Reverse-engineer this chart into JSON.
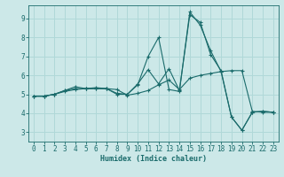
{
  "xlabel": "Humidex (Indice chaleur)",
  "xlim": [
    -0.5,
    23.5
  ],
  "ylim": [
    2.5,
    9.7
  ],
  "xticks": [
    0,
    1,
    2,
    3,
    4,
    5,
    6,
    7,
    8,
    9,
    10,
    11,
    12,
    13,
    14,
    15,
    16,
    17,
    18,
    19,
    20,
    21,
    22,
    23
  ],
  "yticks": [
    3,
    4,
    5,
    6,
    7,
    8,
    9
  ],
  "background_color": "#cce8e8",
  "line_color": "#1a6b6b",
  "grid_color": "#b0d8d8",
  "lines": [
    {
      "x": [
        0,
        1,
        2,
        3,
        4,
        5,
        6,
        7,
        8,
        9,
        10,
        11,
        12,
        13,
        14,
        15,
        16,
        17,
        18,
        19,
        20,
        21,
        22,
        23
      ],
      "y": [
        4.9,
        4.9,
        5.0,
        5.15,
        5.25,
        5.3,
        5.3,
        5.3,
        5.25,
        4.95,
        5.05,
        5.2,
        5.5,
        5.75,
        5.25,
        5.85,
        6.0,
        6.1,
        6.2,
        6.25,
        6.25,
        4.1,
        4.05,
        4.05
      ]
    },
    {
      "x": [
        0,
        1,
        2,
        3,
        4,
        5,
        6,
        7,
        8,
        9,
        10,
        11,
        12,
        13,
        14,
        15,
        16,
        17,
        18,
        19,
        20,
        21,
        22,
        23
      ],
      "y": [
        4.9,
        4.9,
        5.0,
        5.2,
        5.3,
        5.3,
        5.35,
        5.3,
        5.05,
        5.0,
        5.5,
        7.0,
        8.0,
        5.25,
        5.15,
        9.35,
        8.65,
        7.3,
        6.2,
        3.8,
        3.1,
        4.05,
        4.1,
        4.05
      ]
    },
    {
      "x": [
        0,
        1,
        2,
        3,
        4,
        5,
        6,
        7,
        8,
        9,
        10,
        11,
        12,
        13,
        14,
        15,
        16,
        17,
        18,
        19,
        20,
        21,
        22,
        23
      ],
      "y": [
        4.9,
        4.9,
        5.0,
        5.2,
        5.4,
        5.3,
        5.3,
        5.3,
        5.0,
        5.0,
        5.55,
        6.3,
        5.55,
        6.35,
        5.2,
        9.2,
        8.8,
        7.1,
        6.25,
        3.8,
        3.1,
        4.05,
        4.1,
        4.05
      ]
    }
  ]
}
